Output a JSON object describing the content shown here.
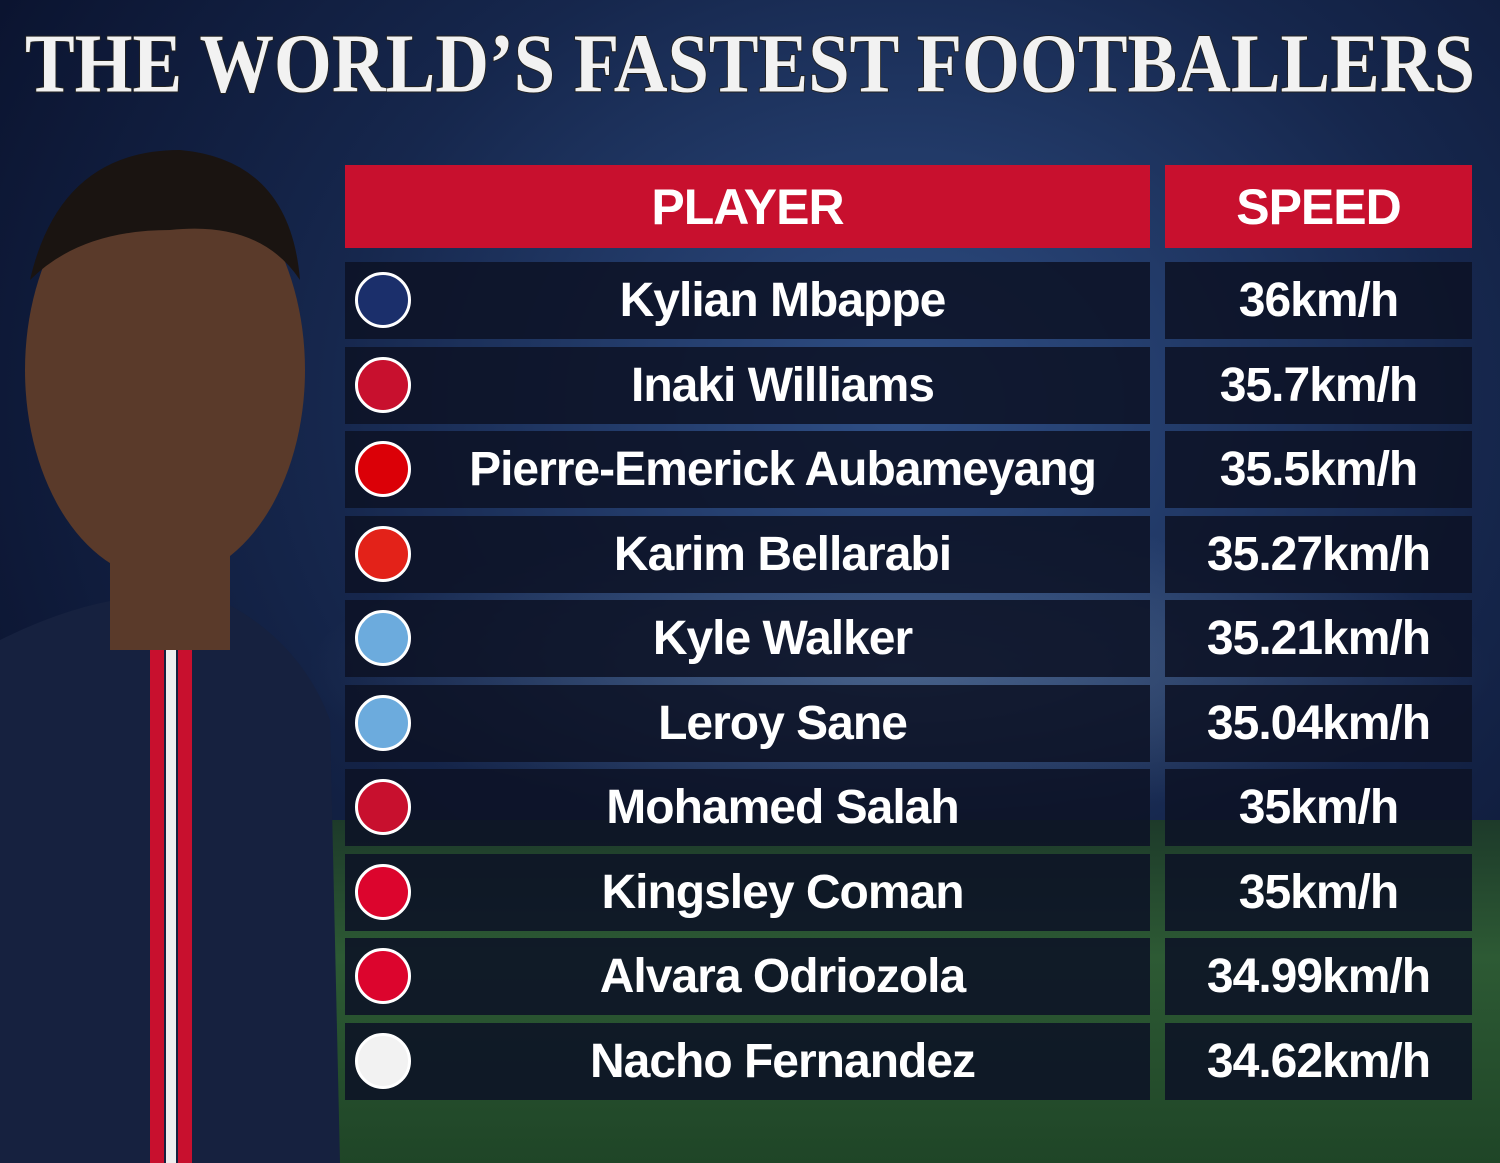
{
  "title": "THE WORLD’S FASTEST FOOTBALLERS",
  "table": {
    "header": [
      "PLAYER",
      "SPEED"
    ],
    "rows": [
      [
        "Kylian Mbappe",
        "36km/h"
      ],
      [
        "Inaki Williams",
        "35.7km/h"
      ],
      [
        "Pierre-Emerick Aubameyang",
        "35.5km/h"
      ],
      [
        "Karim Bellarabi",
        "35.27km/h"
      ],
      [
        "Kyle Walker",
        "35.21km/h"
      ],
      [
        "Leroy Sane",
        "35.04km/h"
      ],
      [
        "Mohamed Salah",
        "35km/h"
      ],
      [
        "Kingsley Coman",
        "35km/h"
      ],
      [
        "Alvara Odriozola",
        "34.99km/h"
      ],
      [
        "Nacho Fernandez",
        "34.62km/h"
      ]
    ]
  }
}
